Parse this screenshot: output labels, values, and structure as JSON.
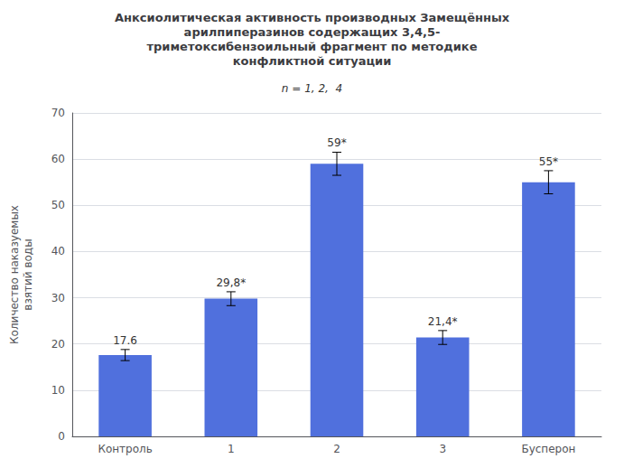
{
  "chart_data": {
    "type": "bar",
    "title": "Анксиолитическая активность производных Замещённых\nарилпиперазинов содержащих 3,4,5-\nтриметоксибензоильный фрагмент по методике\nконфликтной ситуации",
    "categories": [
      "Контроль",
      "1",
      "2",
      "3",
      "Бусперон"
    ],
    "values": [
      17.6,
      29.8,
      59.0,
      21.4,
      55.0
    ],
    "errors": [
      1.2,
      1.5,
      2.5,
      1.5,
      2.5
    ],
    "value_labels": [
      "17.6",
      "29,8*",
      "59*",
      "21,4*",
      "55*"
    ],
    "data_labels": true,
    "ylabel": "Количество наказуемых\nвзятий воды",
    "ylim": [
      0,
      70
    ],
    "yticks": [
      0,
      10,
      20,
      30,
      40,
      50,
      60,
      70
    ],
    "grid": true,
    "annotations": [
      "n = 1, 2,  4"
    ]
  }
}
